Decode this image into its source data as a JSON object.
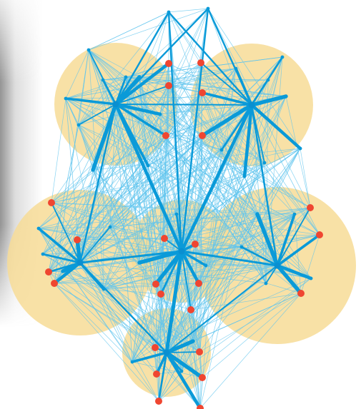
{
  "diagram": {
    "type": "network",
    "colors": {
      "cluster_fill": "#f7dc96",
      "edge": "#0a9ad8",
      "edge_light": "#5fc4ee",
      "node_dot": "#ef4631",
      "hub": "#0a8fd0"
    },
    "clusters": [
      {
        "id": "c-top-left"
      },
      {
        "id": "c-top-right"
      },
      {
        "id": "c-mid-left"
      },
      {
        "id": "c-mid-right"
      },
      {
        "id": "c-center"
      },
      {
        "id": "c-bottom"
      }
    ]
  }
}
